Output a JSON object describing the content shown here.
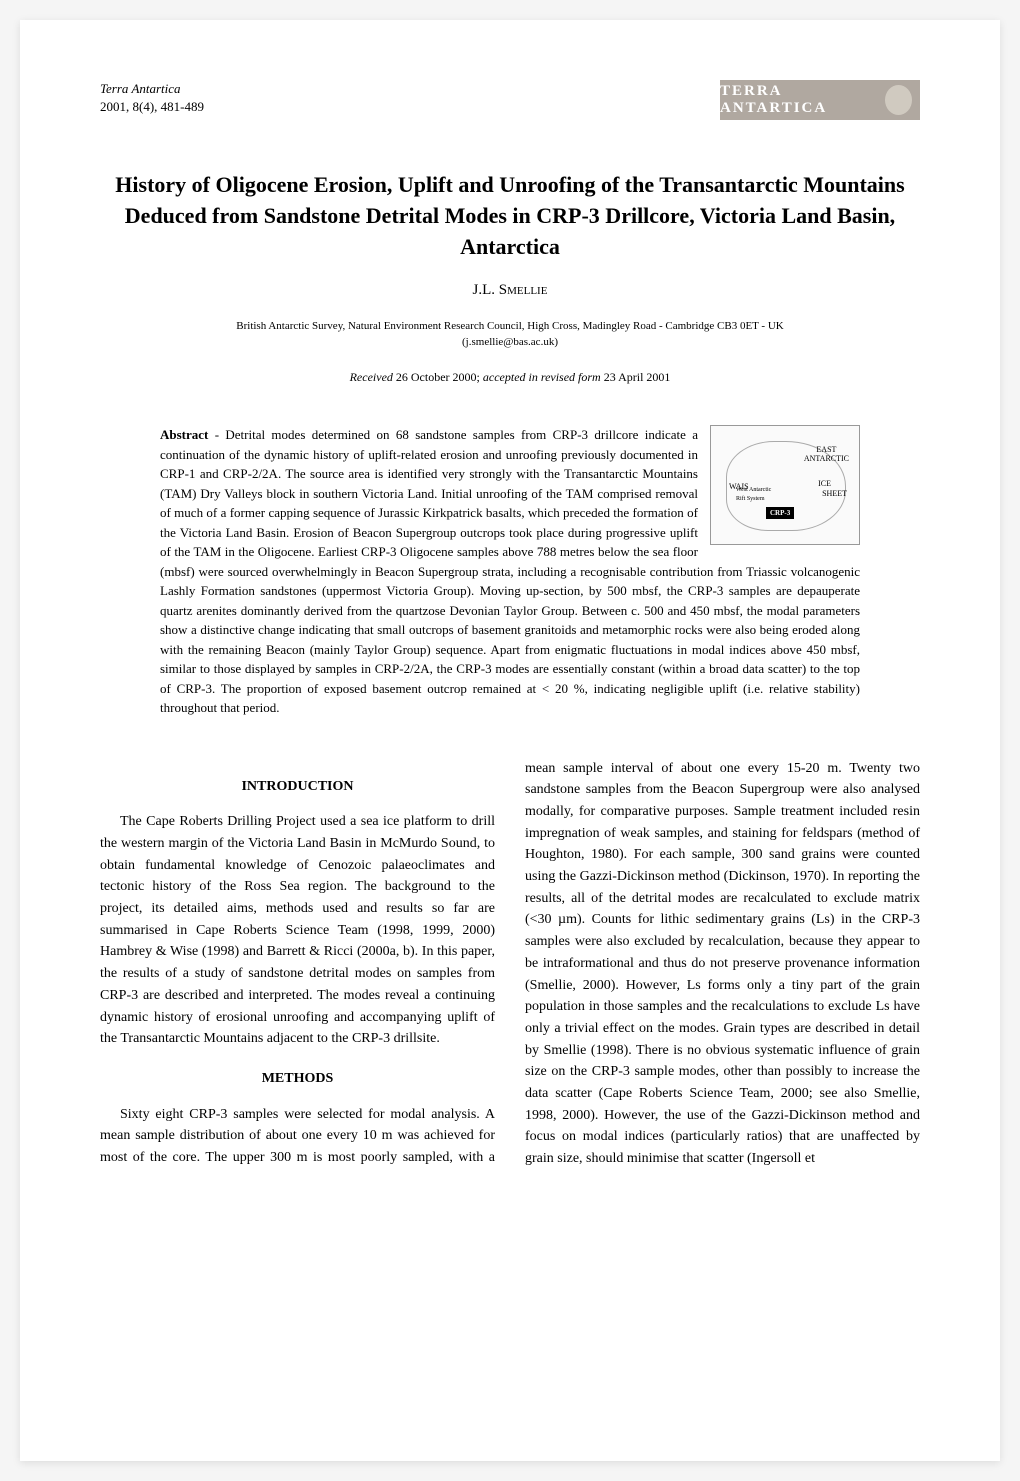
{
  "header": {
    "journal_name": "Terra Antartica",
    "issue_line": "2001, 8(4), 481-489",
    "logo_text": "TERRA ANTARTICA"
  },
  "title": "History of Oligocene Erosion, Uplift and Unroofing of the Transantarctic Mountains Deduced from Sandstone Detrital Modes in CRP-3 Drillcore, Victoria Land Basin, Antarctica",
  "author_initials": "J.L. ",
  "author_surname": "Smellie",
  "affiliation": "British Antarctic Survey, Natural Environment Research Council, High Cross, Madingley Road - Cambridge CB3 0ET - UK",
  "affiliation_email": "(j.smellie@bas.ac.uk)",
  "received_label": "Received ",
  "received_date": "26 October 2000; ",
  "accepted_label": "accepted in revised form ",
  "accepted_date": "23 April 2001",
  "abstract": {
    "label": "Abstract",
    "text_before_map": " - Detrital modes determined on 68 sandstone samples from CRP-3 drillcore indicate a continuation of the dynamic history of uplift-related erosion and unroofing previously documented in CRP-1 and CRP-2/2A. The source area is identified very strongly with the Transantarctic Mountains (TAM) Dry Valleys block in southern Victoria Land. Initial unroofing of the TAM comprised removal of much of a former capping sequence of Jurassic Kirkpatrick basalts, which preceded the formation of the Victoria Land Basin. Erosion of Beacon Supergroup outcrops took place during progressive uplift of the TAM in the Oligocene. Earliest CRP-3 Oligocene samples above 788 metres below the sea floor (mbsf) were sourced",
    "text_after_map": "overwhelmingly in Beacon Supergroup strata, including a recognisable contribution from Triassic volcanogenic Lashly Formation sandstones (uppermost Victoria Group). Moving up-section, by 500 mbsf, the CRP-3 samples are depauperate quartz arenites dominantly derived from the quartzose Devonian Taylor Group. Between c. 500 and 450 mbsf, the modal parameters show a distinctive change indicating that small outcrops of basement granitoids and metamorphic rocks were also being eroded along with the remaining Beacon (mainly Taylor Group) sequence. Apart from enigmatic fluctuations in modal indices above 450 mbsf, similar to those displayed by samples in CRP-2/2A, the CRP-3 modes are essentially constant (within a broad data scatter) to the top of CRP-3. The proportion of exposed basement outcrop remained at < 20 %, indicating negligible uplift (i.e. relative stability) throughout that period."
  },
  "map": {
    "east": "EAST",
    "antarctic": "ANTARCTIC",
    "wais": "WAIS",
    "ice": "ICE",
    "sheet": "SHEET",
    "west_antarctic": "West Antarctic",
    "rift_system": "Rift System",
    "crp3": "CRP-3"
  },
  "sections": {
    "introduction": {
      "heading": "INTRODUCTION",
      "para1": "The Cape Roberts Drilling Project used a sea ice platform to drill the western margin of the Victoria Land Basin in McMurdo Sound, to obtain fundamental knowledge of Cenozoic palaeoclimates and tectonic history of the Ross Sea region. The background to the project, its detailed aims, methods used and results so far are summarised in Cape Roberts Science Team (1998, 1999, 2000) Hambrey & Wise (1998) and Barrett & Ricci (2000a, b). In this paper, the results of a study of sandstone detrital modes on samples from CRP-3 are described and interpreted. The modes reveal a continuing dynamic history of erosional unroofing and accompanying uplift of the Transantarctic Mountains adjacent to the CRP-3 drillsite."
    },
    "methods": {
      "heading": "METHODS",
      "para1": "Sixty eight CRP-3 samples were selected for modal analysis. A mean sample distribution of about one every 10 m was achieved for most of the core. The upper 300 m is most poorly sampled, with a mean sample interval of about one every 15-20 m. Twenty two sandstone samples from the Beacon Supergroup were also analysed modally, for comparative purposes. Sample treatment included resin impregnation of weak samples, and staining for feldspars (method of Houghton, 1980). For each sample, 300 sand grains were counted using the Gazzi-Dickinson method (Dickinson, 1970). In reporting the results, all of the detrital modes are recalculated to exclude matrix (<30 µm). Counts for lithic sedimentary grains (Ls) in the CRP-3 samples were also excluded by recalculation, because they appear to be intraformational and thus do not preserve provenance information (Smellie, 2000). However, Ls forms only a tiny part of the grain population in those samples and the recalculations to exclude Ls have only a trivial effect on the modes. Grain types are described in detail by Smellie (1998). There is no obvious systematic influence of grain size on the CRP-3 sample modes, other than possibly to increase the data scatter (Cape Roberts Science Team, 2000; see also Smellie, 1998, 2000). However, the use of the Gazzi-Dickinson method and focus on modal indices (particularly ratios) that are unaffected by grain size, should minimise that scatter (Ingersoll et"
    }
  },
  "colors": {
    "page_bg": "#ffffff",
    "text": "#000000",
    "logo_bg": "#b0a8a0",
    "logo_text": "#ffffff"
  },
  "typography": {
    "body_font": "Times New Roman",
    "title_size_pt": 16,
    "body_size_pt": 10,
    "abstract_size_pt": 9
  }
}
